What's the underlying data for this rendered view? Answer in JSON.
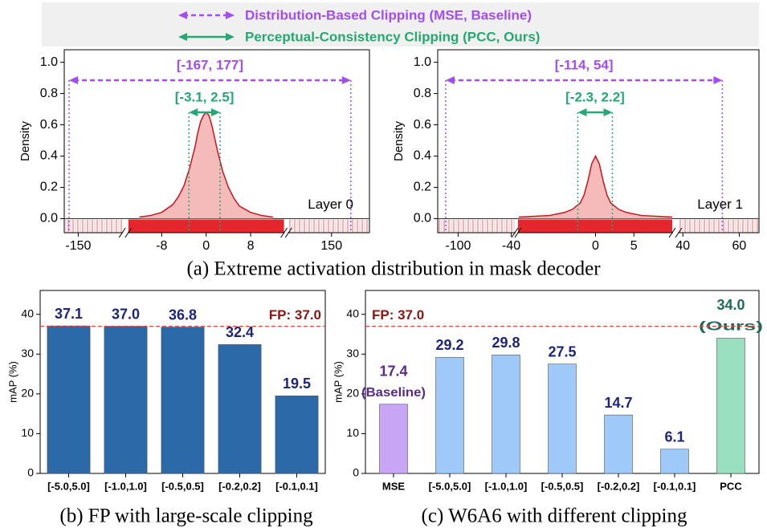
{
  "legend": [
    {
      "name": "Distribution-Based Clipping (MSE, Baseline)",
      "color": "#a34df0",
      "style": "dashed"
    },
    {
      "name": "Perceptual-Consistency Clipping (PCC, Ours)",
      "color": "#25a874",
      "style": "solid"
    }
  ],
  "chart_data": [
    {
      "type": "density",
      "caption": "(a) Extreme activation distribution in mask decoder",
      "ylabel": "Density",
      "ylim": [
        -0.09,
        1.08
      ],
      "yticks": [
        {
          "value": 0,
          "label": "0.0"
        },
        {
          "value": 0.2,
          "label": "0.2"
        },
        {
          "value": 0.4,
          "label": "0.4"
        },
        {
          "value": 0.6,
          "label": "0.6"
        },
        {
          "value": 0.8,
          "label": "0.8"
        },
        {
          "value": 1,
          "label": "1.0"
        }
      ],
      "x_segments": [
        {
          "xlim": [
            -176,
            -68
          ],
          "xticks": [
            -150
          ]
        },
        {
          "xlim": [
            -14,
            14
          ],
          "xticks": [
            -8,
            0,
            8
          ]
        },
        {
          "xlim": [
            90,
            203
          ],
          "xticks": [
            150
          ]
        }
      ],
      "curve": {
        "color": "#c8161d",
        "x": [
          -12,
          -10,
          -8,
          -6,
          -5,
          -4,
          -3,
          -2,
          -1.5,
          -1,
          -0.5,
          0,
          0.5,
          1,
          1.5,
          2,
          3,
          4,
          5,
          6,
          8,
          10,
          12
        ],
        "values": [
          0.01,
          0.02,
          0.04,
          0.09,
          0.14,
          0.21,
          0.32,
          0.46,
          0.55,
          0.62,
          0.66,
          0.68,
          0.66,
          0.6,
          0.52,
          0.44,
          0.3,
          0.2,
          0.13,
          0.08,
          0.04,
          0.02,
          0.01
        ]
      },
      "ranges": [
        {
          "label": "[-167, 177]",
          "values": [
            -167,
            177
          ],
          "color": "#a34df0",
          "style": "dashed"
        },
        {
          "label": "[-3.1, 2.5]",
          "values": [
            -3.1,
            2.5
          ],
          "color": "#25a874",
          "style": "solid"
        }
      ],
      "annotation": "Layer 0"
    },
    {
      "type": "density",
      "ylabel": "Density",
      "ylim": [
        -0.09,
        1.08
      ],
      "yticks": [
        {
          "value": 0,
          "label": "0.0"
        },
        {
          "value": 0.2,
          "label": "0.2"
        },
        {
          "value": 0.4,
          "label": "0.4"
        },
        {
          "value": 0.6,
          "label": "0.6"
        },
        {
          "value": 0.8,
          "label": "0.8"
        },
        {
          "value": 1,
          "label": "1.0"
        }
      ],
      "x_segments": [
        {
          "xlim": [
            -123,
            -36
          ],
          "xticks": [
            -100,
            -40
          ]
        },
        {
          "xlim": [
            -10.1,
            10
          ],
          "xticks": [
            0,
            5
          ]
        },
        {
          "xlim": [
            38.5,
            67
          ],
          "xticks": [
            40,
            60
          ]
        }
      ],
      "curve": {
        "color": "#c8161d",
        "x": [
          -10,
          -6,
          -4,
          -3,
          -2,
          -1.5,
          -1,
          -0.5,
          0,
          0.5,
          1,
          1.5,
          2,
          3,
          4,
          6,
          10
        ],
        "values": [
          0.01,
          0.02,
          0.04,
          0.06,
          0.1,
          0.15,
          0.24,
          0.35,
          0.4,
          0.35,
          0.24,
          0.15,
          0.1,
          0.06,
          0.04,
          0.02,
          0.01
        ]
      },
      "ranges": [
        {
          "label": "[-114, 54]",
          "values": [
            -114,
            54
          ],
          "color": "#a34df0",
          "style": "dashed"
        },
        {
          "label": "[-2.3, 2.2]",
          "values": [
            -2.3,
            2.2
          ],
          "color": "#25a874",
          "style": "solid"
        }
      ],
      "annotation": "Layer 1"
    },
    {
      "type": "bar",
      "caption": "(b) FP with large-scale clipping",
      "ylabel": "mAP (%)",
      "categories": [
        "[-5.0,5.0]",
        "[-1.0,1.0]",
        "[-0.5,0.5]",
        "[-0.2,0.2]",
        "[-0.1,0.1]"
      ],
      "values": [
        37.1,
        37.0,
        36.8,
        32.4,
        19.5
      ],
      "value_labels": [
        "37.1",
        "37.0",
        "36.8",
        "32.4",
        "19.5"
      ],
      "colors": [
        "#2c69a8",
        "#2c69a8",
        "#2c69a8",
        "#2c69a8",
        "#2c69a8"
      ],
      "label_colors": [
        "#1c2577",
        "#1c2577",
        "#1c2577",
        "#1c2577",
        "#1c2577"
      ],
      "ylim": [
        0,
        46
      ],
      "yticks": [
        0,
        10,
        20,
        30,
        40
      ],
      "reference": {
        "value": 37.0,
        "label": "FP: 37.0",
        "color": "#e8453c",
        "label_color": "#8a1414"
      }
    },
    {
      "type": "bar",
      "caption": "(c) W6A6 with different clipping",
      "ylabel": "mAP (%)",
      "categories": [
        "MSE",
        "[-5.0,5.0]",
        "[-1.0,1.0]",
        "[-0.5,0.5]",
        "[-0.2,0.2]",
        "[-0.1,0.1]",
        "PCC"
      ],
      "values": [
        17.4,
        29.2,
        29.8,
        27.5,
        14.7,
        6.1,
        34.0
      ],
      "value_labels": [
        "17.4",
        "29.2",
        "29.8",
        "27.5",
        "14.7",
        "6.1",
        "34.0"
      ],
      "value_notes": [
        "(Baseline)",
        null,
        null,
        null,
        null,
        null,
        "(Ours)"
      ],
      "colors": [
        "#c9a5f6",
        "#9fc9f8",
        "#9fc9f8",
        "#9fc9f8",
        "#9fc9f8",
        "#9fc9f8",
        "#9bdfc1"
      ],
      "label_colors": [
        "#5a2a88",
        "#1c2577",
        "#1c2577",
        "#1c2577",
        "#1c2577",
        "#1c2577",
        "#1e6a5a"
      ],
      "ylim": [
        0,
        46
      ],
      "yticks": [
        0,
        10,
        20,
        30,
        40
      ],
      "reference": {
        "value": 37.0,
        "label": "FP: 37.0",
        "color": "#e8453c",
        "label_color": "#8a1414"
      }
    }
  ]
}
